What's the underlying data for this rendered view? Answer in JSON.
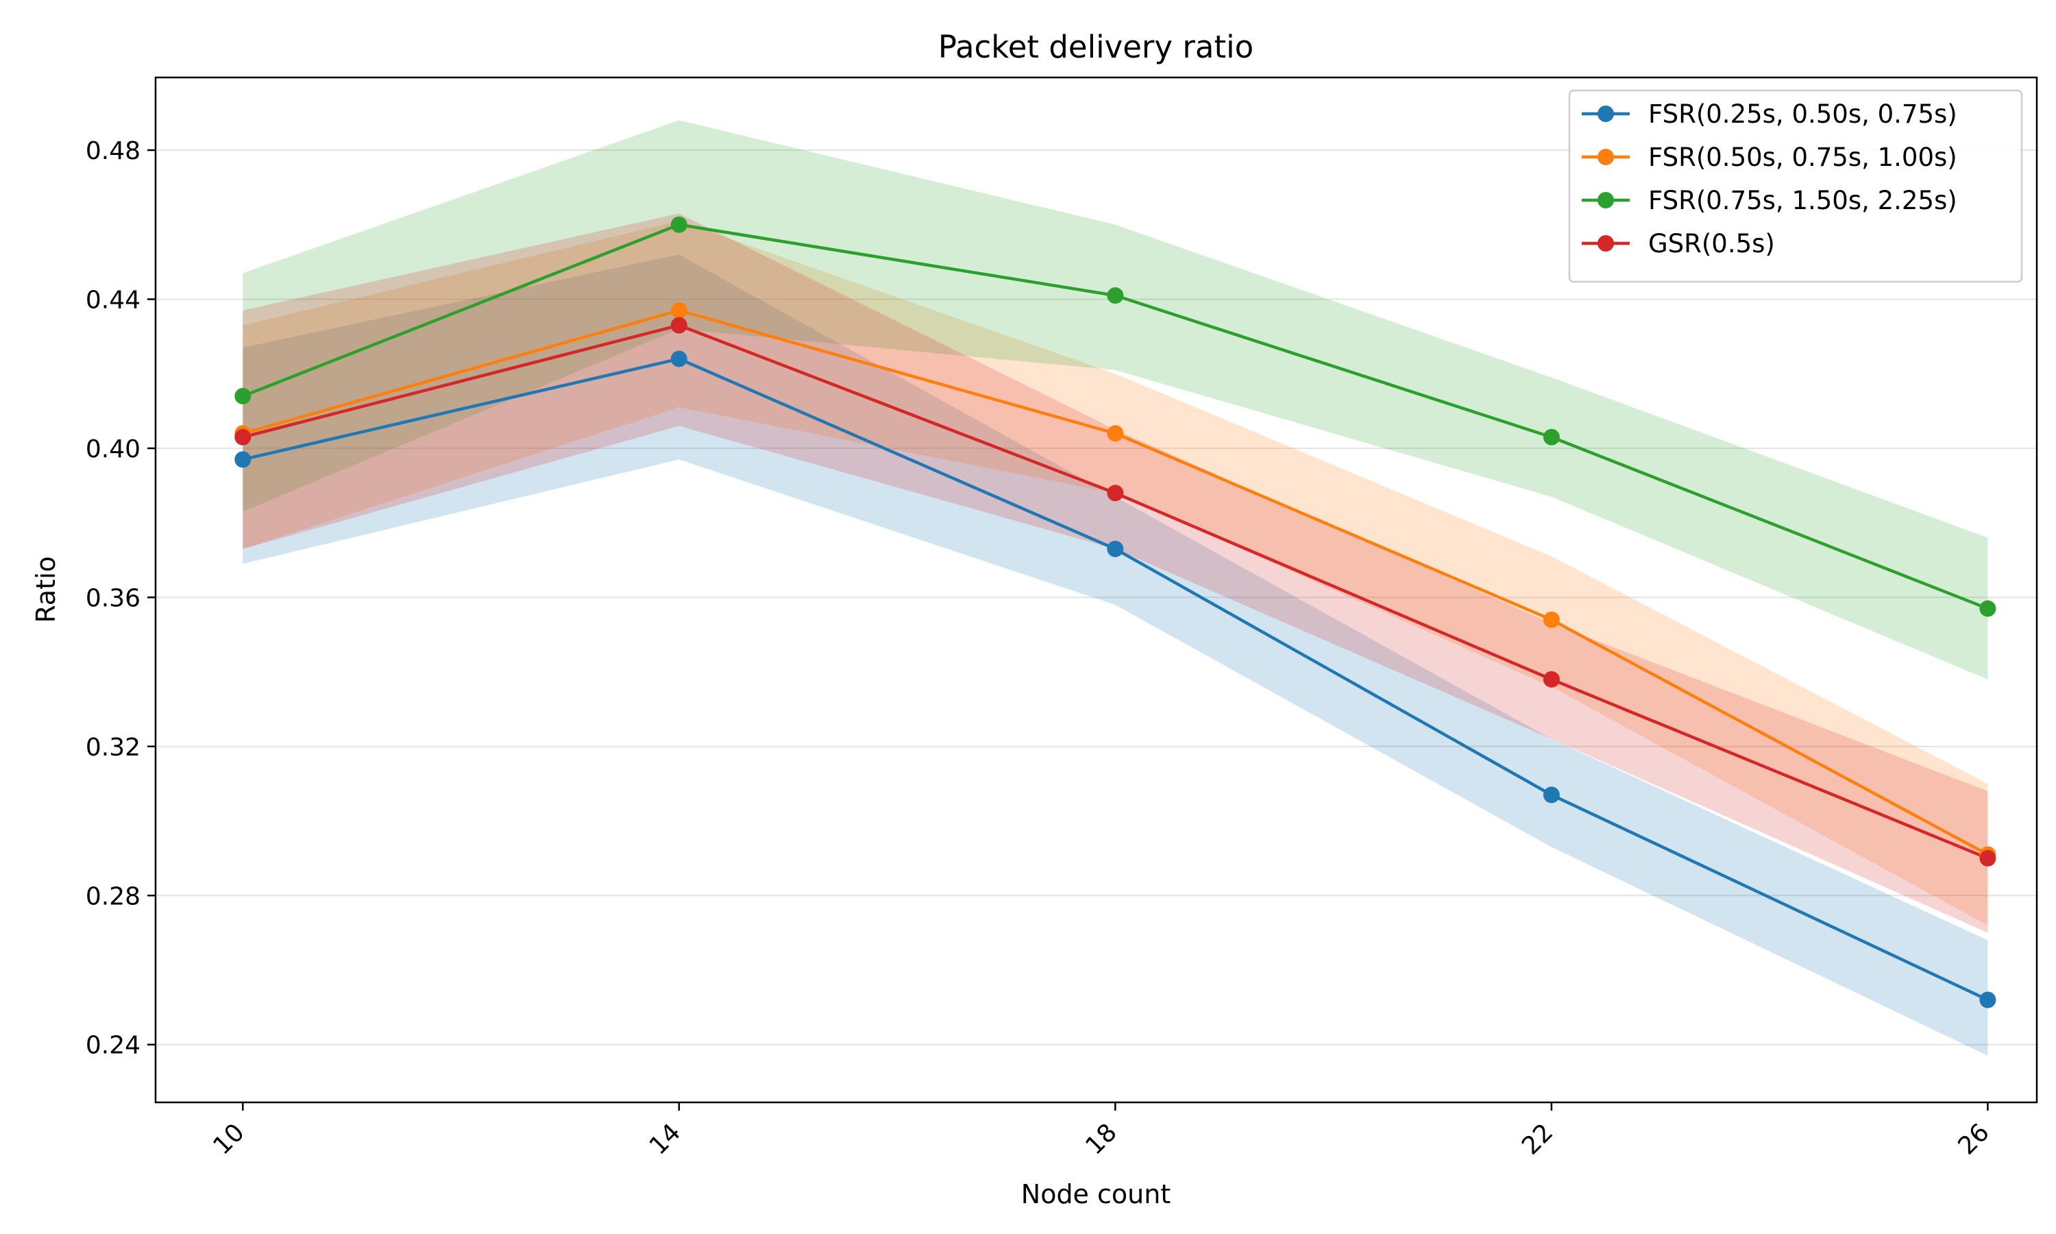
{
  "chart_data": {
    "type": "line",
    "title": "Packet delivery ratio",
    "xlabel": "Node count",
    "ylabel": "Ratio",
    "x": [
      10,
      14,
      18,
      22,
      26
    ],
    "xticks": [
      "10",
      "14",
      "18",
      "22",
      "26"
    ],
    "xlim": [
      9.2,
      26.45
    ],
    "ylim": [
      0.2245,
      0.4995
    ],
    "yticks": [
      0.24,
      0.28,
      0.32,
      0.36,
      0.4,
      0.44,
      0.48
    ],
    "ytick_labels": [
      "0.24",
      "0.28",
      "0.32",
      "0.36",
      "0.40",
      "0.44",
      "0.48"
    ],
    "grid": "horizontal",
    "legend_position": "top-right",
    "series": [
      {
        "name": "FSR(0.25s, 0.50s, 0.75s)",
        "color": "#1f77b4",
        "values": [
          0.397,
          0.424,
          0.373,
          0.307,
          0.252
        ],
        "band_lower": [
          0.369,
          0.397,
          0.358,
          0.293,
          0.237
        ],
        "band_upper": [
          0.427,
          0.452,
          0.387,
          0.322,
          0.268
        ]
      },
      {
        "name": "FSR(0.50s, 0.75s, 1.00s)",
        "color": "#ff7f0e",
        "values": [
          0.404,
          0.437,
          0.404,
          0.354,
          0.291
        ],
        "band_lower": [
          0.373,
          0.411,
          0.388,
          0.336,
          0.272
        ],
        "band_upper": [
          0.433,
          0.461,
          0.42,
          0.371,
          0.31
        ]
      },
      {
        "name": "FSR(0.75s, 1.50s, 2.25s)",
        "color": "#2ca02c",
        "values": [
          0.414,
          0.46,
          0.441,
          0.403,
          0.357
        ],
        "band_lower": [
          0.383,
          0.432,
          0.421,
          0.387,
          0.338
        ],
        "band_upper": [
          0.447,
          0.488,
          0.46,
          0.419,
          0.376
        ]
      },
      {
        "name": "GSR(0.5s)",
        "color": "#d62728",
        "values": [
          0.403,
          0.433,
          0.388,
          0.338,
          0.29
        ],
        "band_lower": [
          0.373,
          0.406,
          0.373,
          0.322,
          0.27
        ],
        "band_upper": [
          0.437,
          0.463,
          0.405,
          0.353,
          0.308
        ]
      }
    ]
  }
}
